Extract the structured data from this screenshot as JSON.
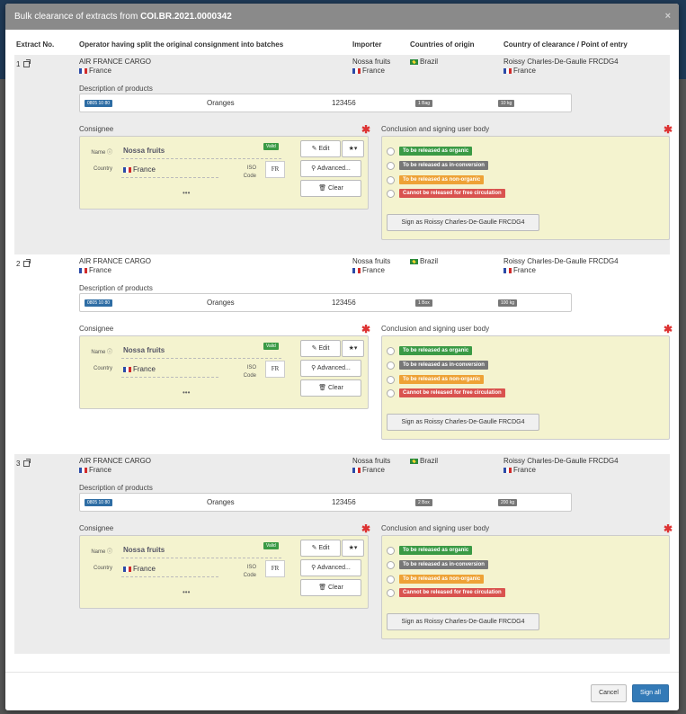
{
  "modal": {
    "title_prefix": "Bulk clearance of extracts from ",
    "title_ref": "COI.BR.2021.0000342",
    "close": "×"
  },
  "columns": {
    "extract_no": "Extract No.",
    "operator": "Operator having split the original consignment into batches",
    "importer": "Importer",
    "countries_origin": "Countries of origin",
    "country_clearance": "Country of clearance / Point of entry"
  },
  "labels": {
    "description": "Description of products",
    "consignee": "Consignee",
    "conclusion": "Conclusion and signing user body",
    "name": "Name ⓘ",
    "country": "Country",
    "iso_code": "ISO Code",
    "valid": "Valid",
    "edit": "✎ Edit",
    "star": "★▾",
    "advanced": "⚲ Advanced...",
    "clear": "🗑 Clear",
    "more": "•••",
    "opt_organic": "To be released as organic",
    "opt_inconversion": "To be released as in-conversion",
    "opt_nonorganic": "To be released as non-organic",
    "opt_cannot": "Cannot be released for free circulation",
    "sign_as": "Sign as Roissy Charles-De-Gaulle FRCDG4"
  },
  "extracts": [
    {
      "number": "1",
      "operator": "AIR FRANCE CARGO",
      "operator_country": "France",
      "importer": "Nossa fruits",
      "importer_country": "France",
      "origin": "Brazil",
      "clearance": "Roissy Charles-De-Gaulle FRCDG4",
      "clearance_country": "France",
      "cn_code": "0805 10 80",
      "product": "Oranges",
      "lot": "123456",
      "quantity": "1 Bag",
      "weight": "10 kg",
      "consignee_name": "Nossa fruits",
      "consignee_country": "France",
      "iso": "FR"
    },
    {
      "number": "2",
      "operator": "AIR FRANCE CARGO",
      "operator_country": "France",
      "importer": "Nossa fruits",
      "importer_country": "France",
      "origin": "Brazil",
      "clearance": "Roissy Charles-De-Gaulle FRCDG4",
      "clearance_country": "France",
      "cn_code": "0805 10 80",
      "product": "Oranges",
      "lot": "123456",
      "quantity": "1 Box",
      "weight": "100 kg",
      "consignee_name": "Nossa fruits",
      "consignee_country": "France",
      "iso": "FR"
    },
    {
      "number": "3",
      "operator": "AIR FRANCE CARGO",
      "operator_country": "France",
      "importer": "Nossa fruits",
      "importer_country": "France",
      "origin": "Brazil",
      "clearance": "Roissy Charles-De-Gaulle FRCDG4",
      "clearance_country": "France",
      "cn_code": "0805 10 80",
      "product": "Oranges",
      "lot": "123456",
      "quantity": "2 Box",
      "weight": "200 kg",
      "consignee_name": "Nossa fruits",
      "consignee_country": "France",
      "iso": "FR"
    }
  ],
  "footer": {
    "cancel": "Cancel",
    "sign_all": "Sign all"
  }
}
